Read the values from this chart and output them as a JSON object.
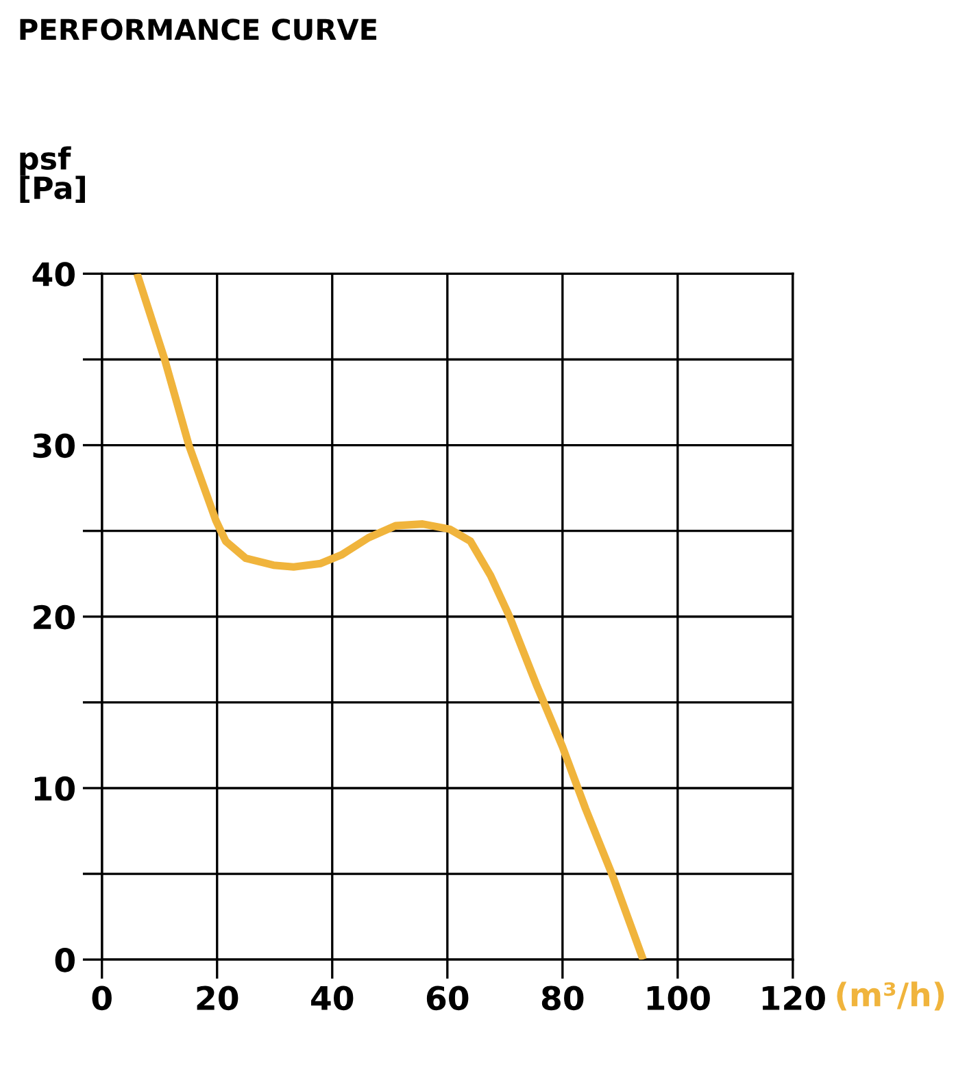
{
  "chart_data": {
    "type": "line",
    "title": "PERFORMANCE CURVE",
    "ylabel": "psf\n[Pa]",
    "xlabel": "(m³/h)",
    "series": [
      {
        "color": "#f0b43c",
        "x": [
          6.1,
          10.9,
          15.1,
          19.8,
          21.5,
          25,
          29.8,
          33.3,
          38,
          41.6,
          46.3,
          51,
          55.7,
          60.4,
          64,
          67.5,
          70.8,
          75.5,
          80,
          84,
          88.8,
          94
        ],
        "values": [
          40,
          35,
          30,
          25.6,
          24.4,
          23.4,
          23.0,
          22.9,
          23.1,
          23.6,
          24.6,
          25.3,
          25.4,
          25.1,
          24.4,
          22.4,
          20,
          16,
          12.4,
          8.8,
          4.8,
          0
        ]
      }
    ],
    "xlim": [
      0,
      120
    ],
    "ylim": [
      0,
      40
    ],
    "xticks": [
      0,
      20,
      40,
      60,
      80,
      100,
      120
    ],
    "yticks": [
      0,
      {
        "value": 5,
        "label": null
      },
      10,
      {
        "value": 15,
        "label": null
      },
      20,
      {
        "value": 25,
        "label": null
      },
      30,
      {
        "value": 35,
        "label": null
      },
      40
    ],
    "grid": true,
    "legend": false,
    "marker": "none",
    "line_style": "solid"
  }
}
